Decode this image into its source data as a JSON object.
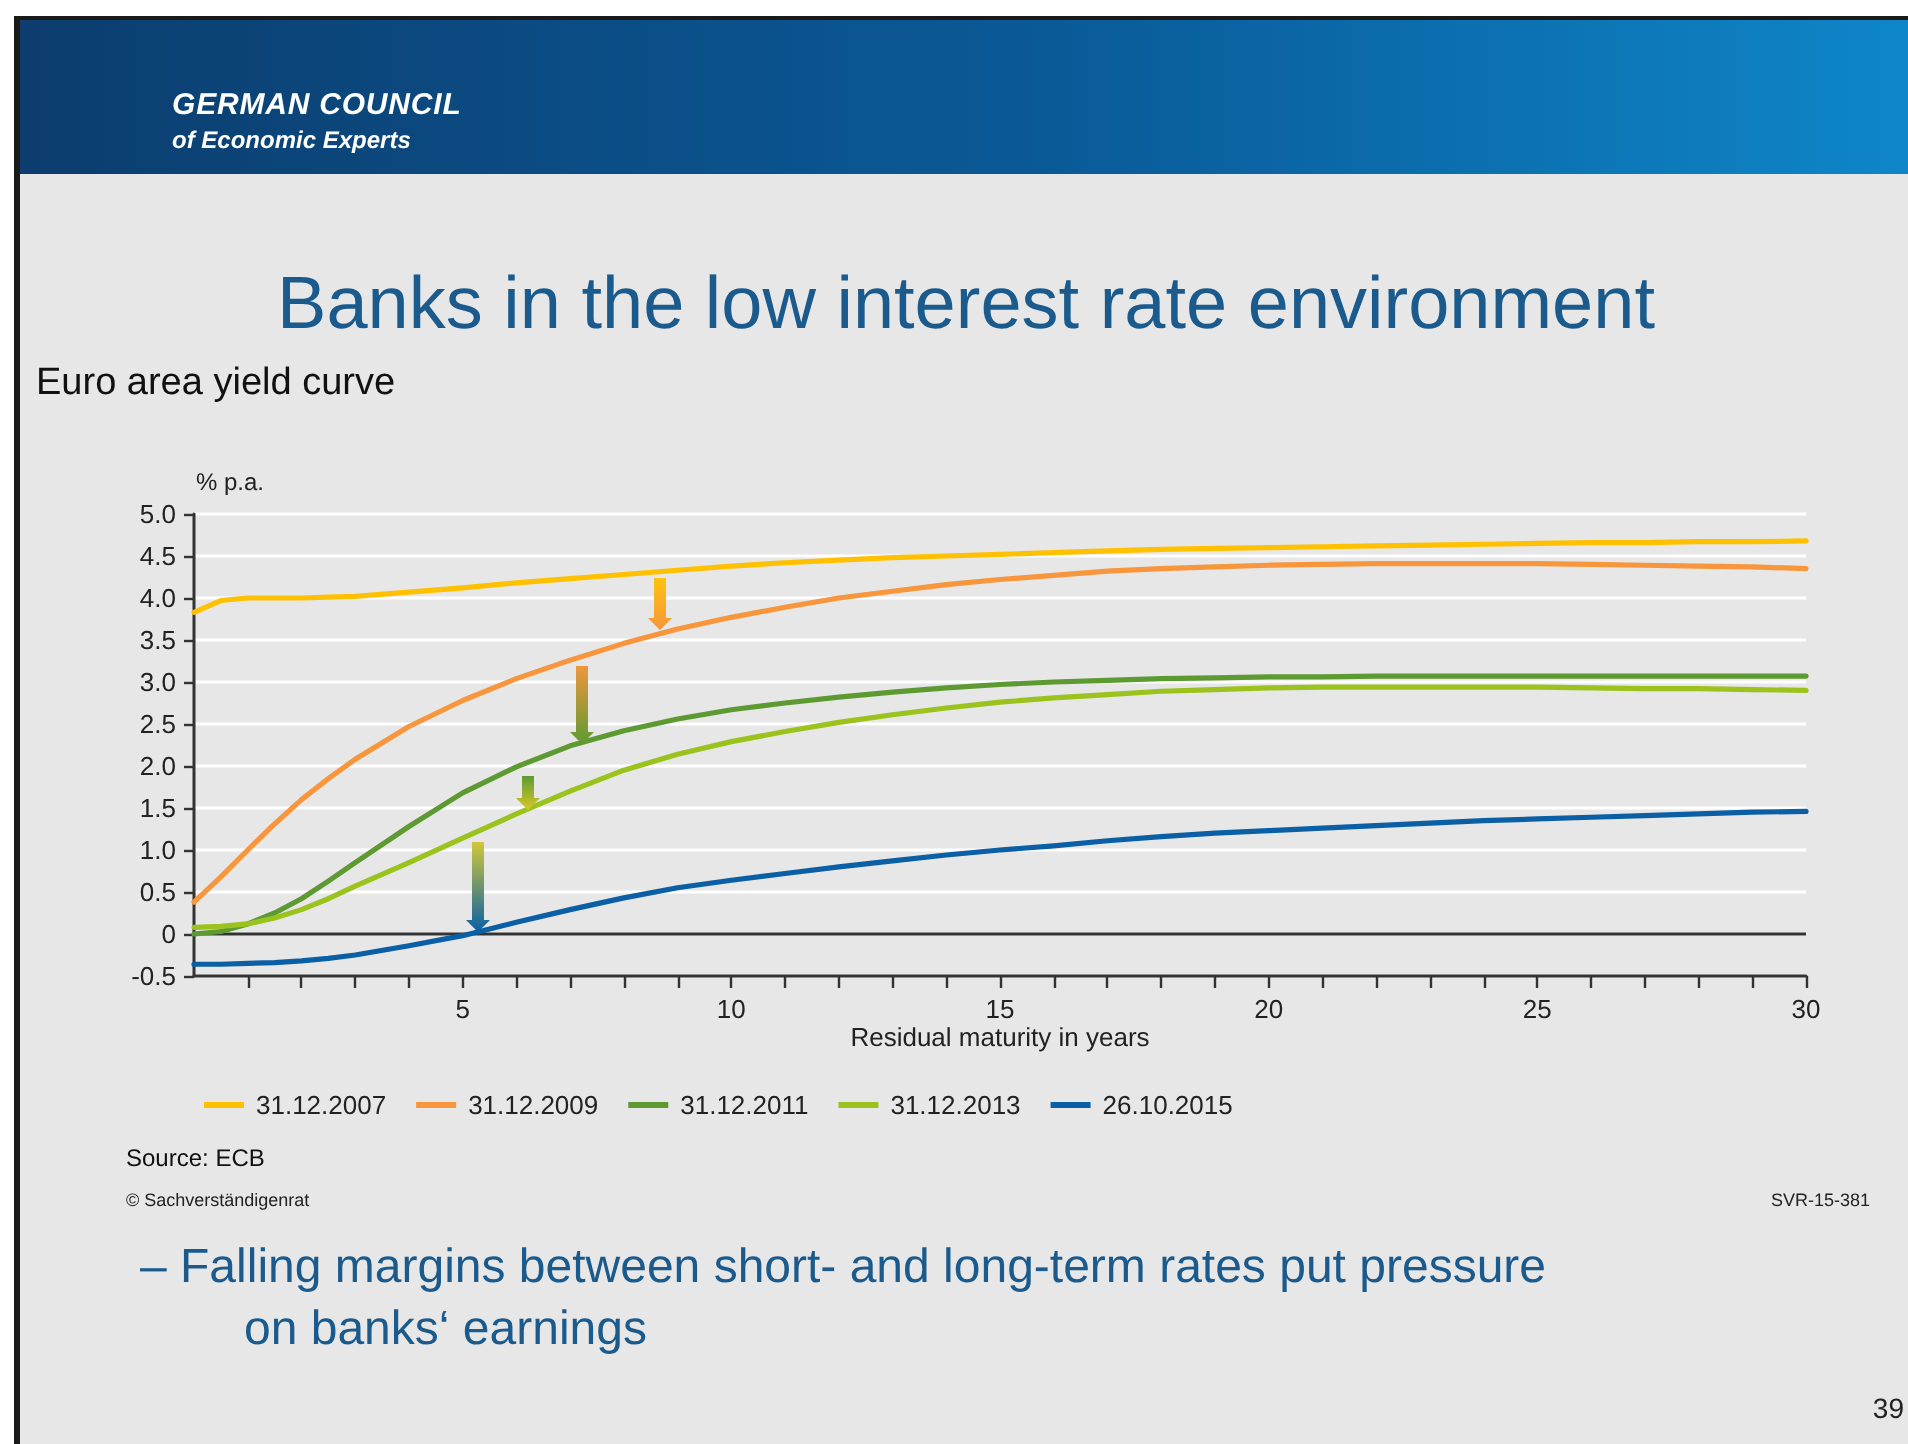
{
  "chart_data": {
    "type": "line",
    "title": "Banks in the low interest rate environment",
    "subtitle": "Euro area yield curve",
    "xlabel": "Residual maturity in years",
    "ylabel": "% p.a.",
    "annotations": [
      "GERMAN COUNCIL",
      "of Economic Experts",
      "Source: ECB",
      "© Sachverständigenrat",
      "SVR-15-381",
      "– Falling margins between short- and long-term rates put pressure on banks‘ earnings",
      "39"
    ],
    "x": [
      0,
      0.5,
      1,
      1.5,
      2,
      2.5,
      3,
      4,
      5,
      6,
      7,
      8,
      9,
      10,
      11,
      12,
      13,
      14,
      15,
      16,
      17,
      18,
      19,
      20,
      21,
      22,
      23,
      24,
      25,
      26,
      27,
      28,
      29,
      30
    ],
    "series": [
      {
        "name": "31.12.2007",
        "color": "#ffc000",
        "values": [
          3.83,
          3.97,
          4.0,
          4.0,
          4.0,
          4.01,
          4.02,
          4.07,
          4.12,
          4.18,
          4.23,
          4.28,
          4.33,
          4.38,
          4.42,
          4.45,
          4.48,
          4.5,
          4.52,
          4.54,
          4.56,
          4.58,
          4.59,
          4.6,
          4.61,
          4.62,
          4.63,
          4.64,
          4.65,
          4.66,
          4.66,
          4.67,
          4.67,
          4.68
        ]
      },
      {
        "name": "31.12.2009",
        "color": "#f7963c",
        "values": [
          0.38,
          0.68,
          1.0,
          1.31,
          1.6,
          1.85,
          2.08,
          2.47,
          2.78,
          3.04,
          3.26,
          3.46,
          3.63,
          3.77,
          3.89,
          4.0,
          4.08,
          4.16,
          4.22,
          4.27,
          4.32,
          4.35,
          4.37,
          4.39,
          4.4,
          4.41,
          4.41,
          4.41,
          4.41,
          4.4,
          4.39,
          4.38,
          4.37,
          4.35
        ]
      },
      {
        "name": "31.12.2011",
        "color": "#5e9a32",
        "values": [
          0.0,
          0.03,
          0.12,
          0.25,
          0.42,
          0.63,
          0.85,
          1.28,
          1.68,
          1.99,
          2.24,
          2.42,
          2.56,
          2.67,
          2.75,
          2.82,
          2.88,
          2.93,
          2.97,
          3.0,
          3.02,
          3.04,
          3.05,
          3.06,
          3.06,
          3.07,
          3.07,
          3.07,
          3.07,
          3.07,
          3.07,
          3.07,
          3.07,
          3.07
        ]
      },
      {
        "name": "31.12.2013",
        "color": "#9bc31e",
        "values": [
          0.08,
          0.09,
          0.12,
          0.19,
          0.29,
          0.42,
          0.57,
          0.85,
          1.14,
          1.43,
          1.7,
          1.95,
          2.14,
          2.29,
          2.41,
          2.52,
          2.61,
          2.69,
          2.76,
          2.81,
          2.85,
          2.89,
          2.91,
          2.93,
          2.94,
          2.94,
          2.94,
          2.94,
          2.94,
          2.93,
          2.92,
          2.92,
          2.91,
          2.9
        ]
      },
      {
        "name": "26.10.2015",
        "color": "#0a5fa5",
        "values": [
          -0.36,
          -0.36,
          -0.35,
          -0.34,
          -0.32,
          -0.29,
          -0.25,
          -0.14,
          -0.02,
          0.14,
          0.29,
          0.43,
          0.55,
          0.64,
          0.72,
          0.8,
          0.87,
          0.94,
          1.0,
          1.05,
          1.11,
          1.16,
          1.2,
          1.23,
          1.26,
          1.29,
          1.32,
          1.35,
          1.37,
          1.39,
          1.41,
          1.43,
          1.45,
          1.46
        ]
      }
    ],
    "xlim": [
      0,
      30
    ],
    "xticks": [
      {
        "value": 1,
        "label": null
      },
      {
        "value": 2,
        "label": null
      },
      {
        "value": 3,
        "label": null
      },
      {
        "value": 4,
        "label": null
      },
      5,
      {
        "value": 6,
        "label": null
      },
      {
        "value": 7,
        "label": null
      },
      {
        "value": 8,
        "label": null
      },
      {
        "value": 9,
        "label": null
      },
      10,
      {
        "value": 11,
        "label": null
      },
      {
        "value": 12,
        "label": null
      },
      {
        "value": 13,
        "label": null
      },
      {
        "value": 14,
        "label": null
      },
      15,
      {
        "value": 16,
        "label": null
      },
      {
        "value": 17,
        "label": null
      },
      {
        "value": 18,
        "label": null
      },
      {
        "value": 19,
        "label": null
      },
      20,
      {
        "value": 21,
        "label": null
      },
      {
        "value": 22,
        "label": null
      },
      {
        "value": 23,
        "label": null
      },
      {
        "value": 24,
        "label": null
      },
      25,
      {
        "value": 26,
        "label": null
      },
      {
        "value": 27,
        "label": null
      },
      {
        "value": 28,
        "label": null
      },
      {
        "value": 29,
        "label": null
      },
      30
    ],
    "ylim": [
      -0.5,
      5
    ],
    "yticks": [
      -0.5,
      0,
      0.5,
      {
        "value": 1,
        "label": "1.0"
      },
      1.5,
      {
        "value": 2,
        "label": "2.0"
      },
      2.5,
      {
        "value": 3,
        "label": "3.0"
      },
      3.5,
      {
        "value": 4,
        "label": "4.0"
      },
      4.5,
      {
        "value": 5,
        "label": "5.0"
      }
    ],
    "ref_lines": [
      {
        "axis": "y",
        "value": 0,
        "color": "#333333"
      }
    ],
    "grid": "y",
    "legend": "bottom",
    "marker": "none"
  }
}
